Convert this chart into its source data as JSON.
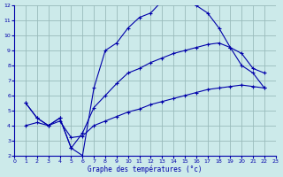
{
  "xlabel": "Graphe des températures (°c)",
  "bg_color": "#cceaea",
  "grid_color": "#99bbbb",
  "line_color": "#0000aa",
  "xlim": [
    0,
    23
  ],
  "ylim": [
    2,
    12
  ],
  "xticks": [
    0,
    1,
    2,
    3,
    4,
    5,
    6,
    7,
    8,
    9,
    10,
    11,
    12,
    13,
    14,
    15,
    16,
    17,
    18,
    19,
    20,
    21,
    22,
    23
  ],
  "yticks": [
    2,
    3,
    4,
    5,
    6,
    7,
    8,
    9,
    10,
    11,
    12
  ],
  "line1_x": [
    1,
    2,
    3,
    4,
    5,
    6,
    7,
    8,
    9,
    10,
    11,
    12,
    13,
    14,
    15,
    16,
    17,
    18,
    19,
    20,
    21,
    22
  ],
  "line1_y": [
    5.5,
    4.5,
    4.0,
    4.5,
    2.5,
    2.0,
    6.5,
    9.0,
    9.5,
    10.5,
    11.2,
    11.5,
    12.3,
    12.45,
    12.3,
    12.0,
    11.5,
    10.5,
    9.2,
    8.0,
    7.5,
    6.5
  ],
  "line2_x": [
    1,
    2,
    3,
    4,
    5,
    6,
    7,
    8,
    9,
    10,
    11,
    12,
    13,
    14,
    15,
    16,
    17,
    18,
    19,
    20,
    21,
    22
  ],
  "line2_y": [
    5.5,
    4.5,
    4.0,
    4.5,
    2.5,
    3.5,
    5.2,
    6.0,
    6.8,
    7.5,
    7.8,
    8.2,
    8.5,
    8.8,
    9.0,
    9.2,
    9.4,
    9.5,
    9.2,
    8.8,
    7.8,
    7.5
  ],
  "line3_x": [
    1,
    2,
    3,
    4,
    5,
    6,
    7,
    8,
    9,
    10,
    11,
    12,
    13,
    14,
    15,
    16,
    17,
    18,
    19,
    20,
    21,
    22
  ],
  "line3_y": [
    4.0,
    4.2,
    4.0,
    4.3,
    3.2,
    3.3,
    4.0,
    4.3,
    4.6,
    4.9,
    5.1,
    5.4,
    5.6,
    5.8,
    6.0,
    6.2,
    6.4,
    6.5,
    6.6,
    6.7,
    6.6,
    6.5
  ]
}
